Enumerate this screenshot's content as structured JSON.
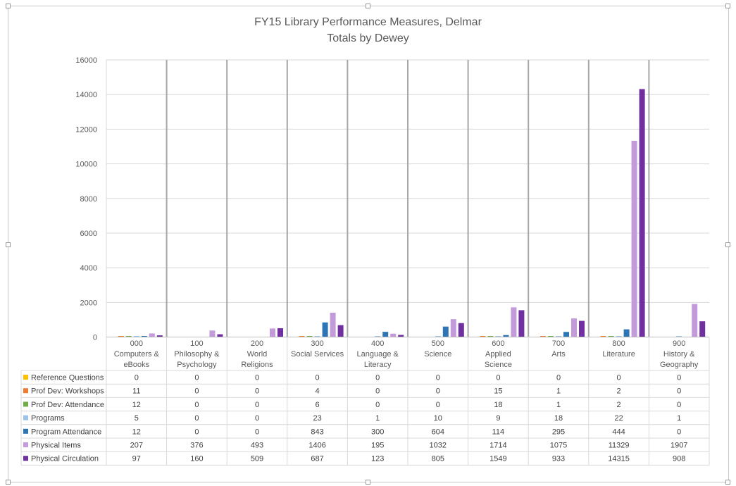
{
  "chart_data": {
    "type": "bar",
    "title": "FY15 Library Performance Measures, Delmar",
    "subtitle": "Totals by Dewey",
    "ylim": [
      0,
      16000
    ],
    "yticks": [
      0,
      2000,
      4000,
      6000,
      8000,
      10000,
      12000,
      14000,
      16000
    ],
    "grid": true,
    "legend": "data-table",
    "categories": [
      [
        "000",
        "Computers &",
        "eBooks"
      ],
      [
        "100",
        "Philosophy &",
        "Psychology"
      ],
      [
        "200",
        "World",
        "Religions"
      ],
      [
        "300",
        "Social Services"
      ],
      [
        "400",
        "Language &",
        "Literacy"
      ],
      [
        "500",
        "Science"
      ],
      [
        "600",
        "Applied",
        "Science"
      ],
      [
        "700",
        "Arts"
      ],
      [
        "800",
        "Literature"
      ],
      [
        "900",
        "History &",
        "Geography"
      ]
    ],
    "series": [
      {
        "name": "Reference Questions",
        "color": "#FFC000",
        "values": [
          0,
          0,
          0,
          0,
          0,
          0,
          0,
          0,
          0,
          0
        ]
      },
      {
        "name": "Prof Dev: Workshops",
        "color": "#ED7D31",
        "values": [
          11,
          0,
          0,
          4,
          0,
          0,
          15,
          1,
          2,
          0
        ]
      },
      {
        "name": "Prof Dev: Attendance",
        "color": "#70AD47",
        "values": [
          12,
          0,
          0,
          6,
          0,
          0,
          18,
          1,
          2,
          0
        ]
      },
      {
        "name": "Programs",
        "color": "#9DC3E6",
        "values": [
          5,
          0,
          0,
          23,
          1,
          10,
          9,
          18,
          22,
          1
        ]
      },
      {
        "name": "Program Attendance",
        "color": "#2E75B6",
        "values": [
          12,
          0,
          0,
          843,
          300,
          604,
          114,
          295,
          444,
          0
        ]
      },
      {
        "name": "Physical Items",
        "color": "#C39BDB",
        "values": [
          207,
          376,
          493,
          1406,
          195,
          1032,
          1714,
          1075,
          11329,
          1907
        ]
      },
      {
        "name": "Physical Circulation",
        "color": "#7030A0",
        "values": [
          97,
          160,
          509,
          687,
          123,
          805,
          1549,
          933,
          14315,
          908
        ]
      }
    ]
  }
}
